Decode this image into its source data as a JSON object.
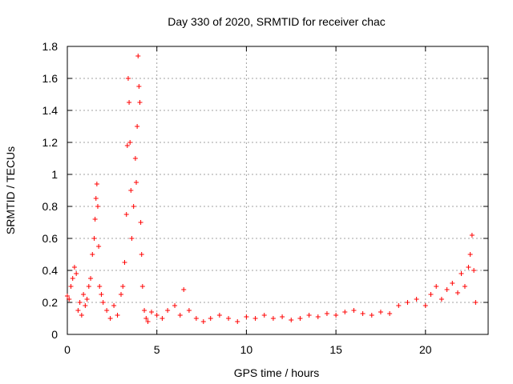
{
  "chart_data": {
    "type": "scatter",
    "title": "Day 330 of 2020, SRMTID for receiver chac",
    "xlabel": "GPS time / hours",
    "ylabel": "SRMTID / TECUs",
    "xlim": [
      0,
      23.5
    ],
    "ylim": [
      0,
      1.8
    ],
    "xticks": [
      0,
      5,
      10,
      15,
      20
    ],
    "xtick_labels": [
      "0",
      "5",
      "10",
      "15",
      "20"
    ],
    "yticks": [
      0,
      0.2,
      0.4,
      0.6,
      0.8,
      1.0,
      1.2,
      1.4,
      1.6,
      1.8
    ],
    "ytick_labels": [
      "0",
      "0.2",
      "0.4",
      "0.6",
      "0.8",
      "1",
      "1.2",
      "1.4",
      "1.6",
      "1.8"
    ],
    "grid": true,
    "marker": "plus",
    "color": "#ff0000",
    "series": [
      {
        "name": "SRMTID",
        "x": [
          0.0,
          0.1,
          0.2,
          0.3,
          0.4,
          0.5,
          0.6,
          0.7,
          0.8,
          0.9,
          1.0,
          1.1,
          1.2,
          1.3,
          1.4,
          1.5,
          1.55,
          1.6,
          1.65,
          1.7,
          1.75,
          1.8,
          1.9,
          2.0,
          2.2,
          2.4,
          2.6,
          2.8,
          3.0,
          3.1,
          3.2,
          3.3,
          3.35,
          3.4,
          3.45,
          3.5,
          3.55,
          3.6,
          3.7,
          3.8,
          3.85,
          3.9,
          3.95,
          4.0,
          4.05,
          4.1,
          4.15,
          4.2,
          4.3,
          4.4,
          4.5,
          4.7,
          5.0,
          5.3,
          5.6,
          6.0,
          6.3,
          6.5,
          6.8,
          7.2,
          7.6,
          8.0,
          8.5,
          9.0,
          9.5,
          10.0,
          10.5,
          11.0,
          11.5,
          12.0,
          12.5,
          13.0,
          13.5,
          14.0,
          14.5,
          15.0,
          15.5,
          16.0,
          16.5,
          17.0,
          17.5,
          18.0,
          18.5,
          19.0,
          19.5,
          20.0,
          20.3,
          20.6,
          20.9,
          21.2,
          21.5,
          21.8,
          22.0,
          22.2,
          22.4,
          22.5,
          22.6,
          22.7,
          22.8
        ],
        "y": [
          0.24,
          0.22,
          0.3,
          0.35,
          0.42,
          0.38,
          0.15,
          0.2,
          0.12,
          0.25,
          0.18,
          0.22,
          0.3,
          0.35,
          0.5,
          0.6,
          0.72,
          0.85,
          0.94,
          0.8,
          0.55,
          0.3,
          0.25,
          0.2,
          0.15,
          0.1,
          0.18,
          0.12,
          0.25,
          0.3,
          0.45,
          0.75,
          1.18,
          1.6,
          1.45,
          1.2,
          0.9,
          0.6,
          0.8,
          1.1,
          0.95,
          1.3,
          1.74,
          1.55,
          1.45,
          0.7,
          0.5,
          0.3,
          0.15,
          0.1,
          0.08,
          0.14,
          0.12,
          0.1,
          0.15,
          0.18,
          0.12,
          0.28,
          0.15,
          0.1,
          0.08,
          0.1,
          0.12,
          0.1,
          0.08,
          0.11,
          0.1,
          0.12,
          0.1,
          0.11,
          0.09,
          0.1,
          0.12,
          0.11,
          0.13,
          0.12,
          0.14,
          0.15,
          0.13,
          0.12,
          0.14,
          0.13,
          0.18,
          0.2,
          0.22,
          0.18,
          0.25,
          0.3,
          0.22,
          0.28,
          0.32,
          0.26,
          0.38,
          0.3,
          0.42,
          0.5,
          0.62,
          0.4,
          0.2
        ]
      }
    ]
  }
}
